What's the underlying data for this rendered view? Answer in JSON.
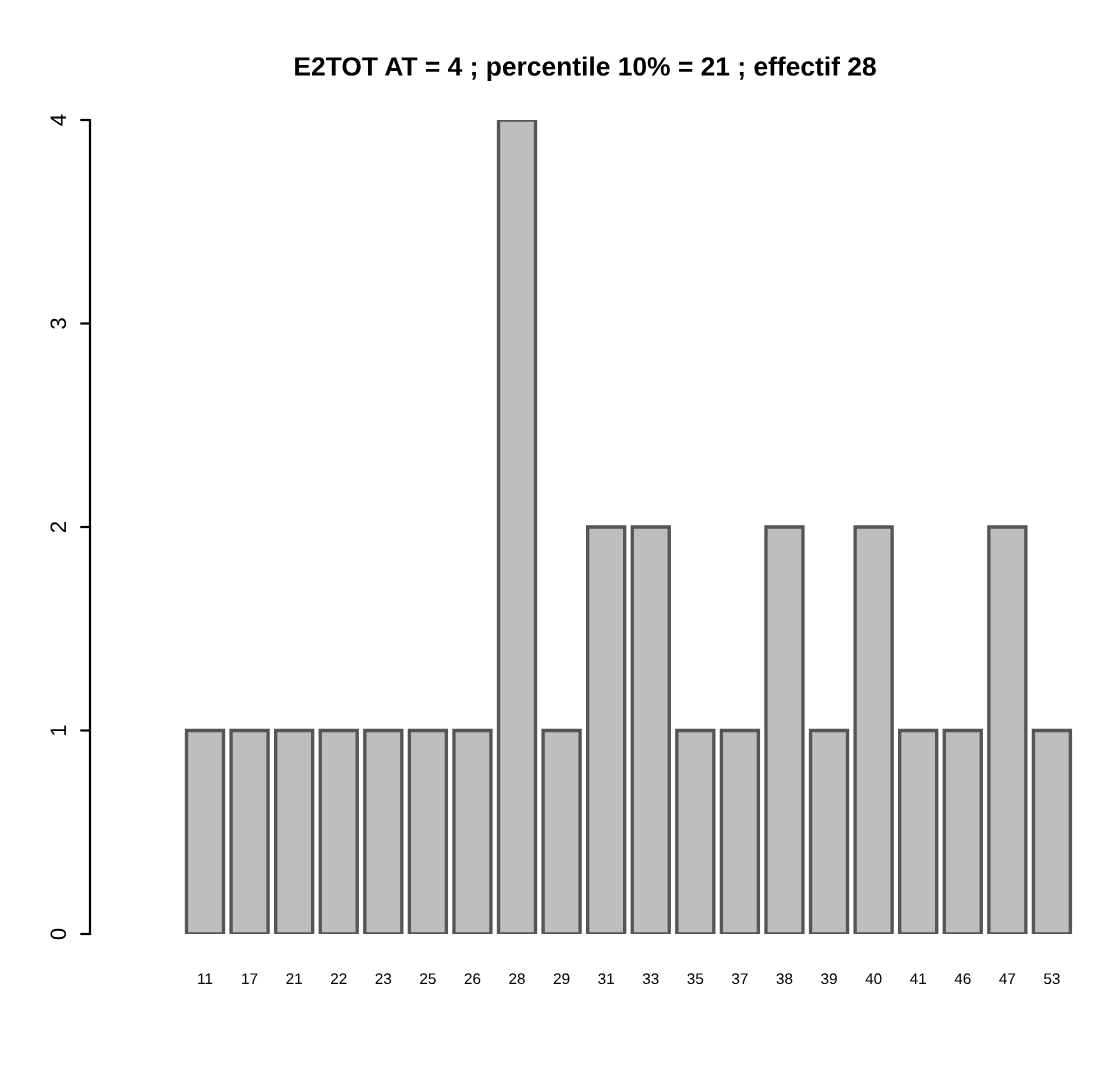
{
  "chart_data": {
    "type": "bar",
    "title": "E2TOT AT = 4 ; percentile 10% = 21 ; effectif 28",
    "categories": [
      "11",
      "17",
      "21",
      "22",
      "23",
      "25",
      "26",
      "28",
      "29",
      "31",
      "33",
      "35",
      "37",
      "38",
      "39",
      "40",
      "41",
      "46",
      "47",
      "53"
    ],
    "values": [
      1,
      1,
      1,
      1,
      1,
      1,
      1,
      4,
      1,
      2,
      2,
      1,
      1,
      2,
      1,
      2,
      1,
      1,
      2,
      1
    ],
    "color": "#bebebe",
    "ylim": [
      0,
      4
    ],
    "yticks": [
      0,
      1,
      2,
      3,
      4
    ],
    "grid": false
  }
}
